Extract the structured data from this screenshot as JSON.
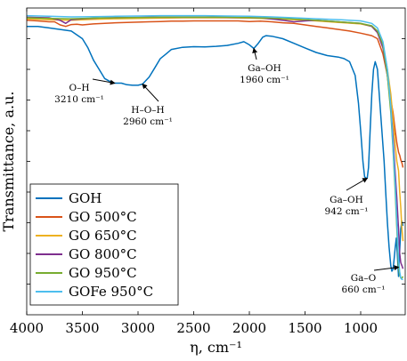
{
  "chart_data": {
    "type": "line",
    "xlabel": "η, cm⁻¹",
    "ylabel": "Transmittance, a.u.",
    "xlim": [
      4000,
      600
    ],
    "x_reversed": true,
    "xticks": [
      "4000",
      "3500",
      "3000",
      "2500",
      "2000",
      "1500",
      "1000"
    ],
    "xtick_values": [
      4000,
      3500,
      3000,
      2500,
      2000,
      1500,
      1000
    ],
    "ylim": [
      0,
      100
    ],
    "y_tick_labels_shown": false,
    "grid": false,
    "legend_position": "bottom-left",
    "series": [
      {
        "name": "GOH",
        "color": "#0072BD",
        "points": [
          [
            4000,
            94
          ],
          [
            3900,
            94
          ],
          [
            3800,
            93.5
          ],
          [
            3700,
            93
          ],
          [
            3600,
            92.5
          ],
          [
            3500,
            90
          ],
          [
            3450,
            87
          ],
          [
            3400,
            83
          ],
          [
            3350,
            80
          ],
          [
            3300,
            77
          ],
          [
            3250,
            76
          ],
          [
            3210,
            75.5
          ],
          [
            3150,
            75.5
          ],
          [
            3100,
            75
          ],
          [
            3050,
            74.8
          ],
          [
            3000,
            74.8
          ],
          [
            2960,
            75.2
          ],
          [
            2900,
            77.5
          ],
          [
            2850,
            80.5
          ],
          [
            2800,
            83.5
          ],
          [
            2750,
            85
          ],
          [
            2700,
            86.5
          ],
          [
            2600,
            87.2
          ],
          [
            2500,
            87.4
          ],
          [
            2400,
            87.3
          ],
          [
            2300,
            87.5
          ],
          [
            2200,
            87.8
          ],
          [
            2100,
            88.5
          ],
          [
            2050,
            89
          ],
          [
            2000,
            88
          ],
          [
            1960,
            86.8
          ],
          [
            1920,
            88.5
          ],
          [
            1880,
            90.5
          ],
          [
            1850,
            91
          ],
          [
            1800,
            90.8
          ],
          [
            1700,
            90
          ],
          [
            1600,
            88.5
          ],
          [
            1500,
            87
          ],
          [
            1400,
            85.5
          ],
          [
            1300,
            84.5
          ],
          [
            1200,
            84
          ],
          [
            1150,
            83.5
          ],
          [
            1100,
            82.5
          ],
          [
            1050,
            78
          ],
          [
            1020,
            69
          ],
          [
            1000,
            60
          ],
          [
            980,
            50
          ],
          [
            965,
            45
          ],
          [
            950,
            44.5
          ],
          [
            942,
            44.5
          ],
          [
            930,
            48
          ],
          [
            915,
            60
          ],
          [
            900,
            72
          ],
          [
            885,
            80
          ],
          [
            870,
            82.5
          ],
          [
            850,
            80
          ],
          [
            830,
            70
          ],
          [
            810,
            60
          ],
          [
            790,
            50
          ],
          [
            775,
            40
          ],
          [
            760,
            30
          ],
          [
            745,
            22
          ],
          [
            730,
            16
          ],
          [
            720,
            14.2
          ],
          [
            710,
            14.8
          ],
          [
            700,
            18
          ],
          [
            690,
            22
          ],
          [
            680,
            25
          ],
          [
            670,
            19
          ],
          [
            660,
            12.5
          ],
          [
            650,
            21
          ],
          [
            640,
            28
          ],
          [
            630,
            30.5
          ],
          [
            620,
            29
          ]
        ]
      },
      {
        "name": "GO 500°C",
        "color": "#D95319",
        "points": [
          [
            4000,
            96
          ],
          [
            3900,
            95.8
          ],
          [
            3800,
            95.5
          ],
          [
            3750,
            95.5
          ],
          [
            3700,
            94.5
          ],
          [
            3650,
            94
          ],
          [
            3600,
            94.6
          ],
          [
            3550,
            94.7
          ],
          [
            3500,
            94.5
          ],
          [
            3400,
            94.8
          ],
          [
            3300,
            95
          ],
          [
            3200,
            95.2
          ],
          [
            3100,
            95.3
          ],
          [
            3000,
            95.4
          ],
          [
            2900,
            95.5
          ],
          [
            2800,
            95.6
          ],
          [
            2700,
            95.7
          ],
          [
            2600,
            95.7
          ],
          [
            2500,
            95.8
          ],
          [
            2400,
            95.8
          ],
          [
            2300,
            95.8
          ],
          [
            2200,
            95.8
          ],
          [
            2100,
            95.8
          ],
          [
            2000,
            95.6
          ],
          [
            1900,
            95.7
          ],
          [
            1800,
            95.5
          ],
          [
            1700,
            95.2
          ],
          [
            1600,
            95
          ],
          [
            1500,
            94.5
          ],
          [
            1400,
            94
          ],
          [
            1300,
            93.5
          ],
          [
            1200,
            93
          ],
          [
            1100,
            92.5
          ],
          [
            1000,
            91.8
          ],
          [
            900,
            91
          ],
          [
            850,
            90
          ],
          [
            800,
            85
          ],
          [
            760,
            78
          ],
          [
            730,
            70
          ],
          [
            710,
            66
          ],
          [
            690,
            60
          ],
          [
            675,
            56
          ],
          [
            660,
            53
          ],
          [
            650,
            52
          ],
          [
            640,
            50.5
          ],
          [
            630,
            49.5
          ],
          [
            620,
            48
          ]
        ]
      },
      {
        "name": "GO 650°C",
        "color": "#EDB120",
        "points": [
          [
            4000,
            96.5
          ],
          [
            3800,
            96.2
          ],
          [
            3600,
            96
          ],
          [
            3400,
            96.3
          ],
          [
            3200,
            96.5
          ],
          [
            3000,
            96.6
          ],
          [
            2800,
            96.7
          ],
          [
            2600,
            96.8
          ],
          [
            2400,
            96.8
          ],
          [
            2200,
            96.8
          ],
          [
            2000,
            96.7
          ],
          [
            1800,
            96.5
          ],
          [
            1600,
            96.2
          ],
          [
            1400,
            95.8
          ],
          [
            1200,
            95.3
          ],
          [
            1000,
            94.8
          ],
          [
            900,
            94
          ],
          [
            850,
            92
          ],
          [
            800,
            88
          ],
          [
            760,
            80
          ],
          [
            730,
            72
          ],
          [
            710,
            64
          ],
          [
            690,
            55
          ],
          [
            675,
            50
          ],
          [
            660,
            47
          ],
          [
            650,
            40
          ],
          [
            640,
            35
          ],
          [
            630,
            28
          ],
          [
            620,
            24
          ]
        ]
      },
      {
        "name": "GO 800°C",
        "color": "#7E2F8E",
        "points": [
          [
            4000,
            97
          ],
          [
            3800,
            96.8
          ],
          [
            3700,
            96
          ],
          [
            3650,
            95
          ],
          [
            3600,
            96.2
          ],
          [
            3500,
            96.5
          ],
          [
            3300,
            96.8
          ],
          [
            3100,
            96.9
          ],
          [
            2900,
            97
          ],
          [
            2700,
            97
          ],
          [
            2500,
            97
          ],
          [
            2300,
            97
          ],
          [
            2100,
            96.9
          ],
          [
            1900,
            96.8
          ],
          [
            1700,
            96
          ],
          [
            1600,
            95.5
          ],
          [
            1500,
            95.8
          ],
          [
            1400,
            96
          ],
          [
            1200,
            95.5
          ],
          [
            1000,
            95
          ],
          [
            900,
            94
          ],
          [
            850,
            92
          ],
          [
            800,
            87
          ],
          [
            760,
            78
          ],
          [
            730,
            68
          ],
          [
            710,
            58
          ],
          [
            690,
            46
          ],
          [
            675,
            38
          ],
          [
            660,
            28
          ],
          [
            650,
            20
          ],
          [
            640,
            17
          ],
          [
            630,
            16
          ],
          [
            620,
            15
          ]
        ]
      },
      {
        "name": "GO 950°C",
        "color": "#77AC30",
        "points": [
          [
            4000,
            96.8
          ],
          [
            3800,
            96.6
          ],
          [
            3600,
            96.5
          ],
          [
            3400,
            96.7
          ],
          [
            3200,
            96.8
          ],
          [
            3000,
            96.9
          ],
          [
            2800,
            97
          ],
          [
            2600,
            97
          ],
          [
            2400,
            97
          ],
          [
            2200,
            97
          ],
          [
            2000,
            96.9
          ],
          [
            1800,
            96.7
          ],
          [
            1600,
            96.4
          ],
          [
            1400,
            96
          ],
          [
            1200,
            95.5
          ],
          [
            1000,
            95
          ],
          [
            900,
            94.2
          ],
          [
            850,
            92.5
          ],
          [
            800,
            88
          ],
          [
            760,
            78
          ],
          [
            730,
            66
          ],
          [
            710,
            54
          ],
          [
            690,
            40
          ],
          [
            675,
            28
          ],
          [
            660,
            15.5
          ],
          [
            650,
            13
          ],
          [
            640,
            12
          ],
          [
            630,
            12
          ],
          [
            620,
            12.5
          ]
        ]
      },
      {
        "name": "GOFe 950°C",
        "color": "#4DBEEE",
        "points": [
          [
            4000,
            97.5
          ],
          [
            3800,
            97.3
          ],
          [
            3600,
            97.1
          ],
          [
            3400,
            97.2
          ],
          [
            3200,
            97.3
          ],
          [
            3000,
            97.4
          ],
          [
            2800,
            97.5
          ],
          [
            2600,
            97.5
          ],
          [
            2400,
            97.5
          ],
          [
            2200,
            97.4
          ],
          [
            2000,
            97.3
          ],
          [
            1800,
            97.1
          ],
          [
            1600,
            96.8
          ],
          [
            1400,
            96.5
          ],
          [
            1200,
            96.2
          ],
          [
            1000,
            95.8
          ],
          [
            900,
            95
          ],
          [
            850,
            93.5
          ],
          [
            800,
            89
          ],
          [
            760,
            80
          ],
          [
            730,
            68
          ],
          [
            710,
            55
          ],
          [
            690,
            42
          ],
          [
            675,
            30
          ],
          [
            660,
            18
          ],
          [
            650,
            14
          ],
          [
            640,
            12
          ],
          [
            630,
            11.5
          ],
          [
            620,
            11.5
          ]
        ]
      }
    ],
    "annotations": [
      {
        "id": "oh",
        "label": "O–H",
        "wavenumber": "3210 cm⁻¹"
      },
      {
        "id": "hoh",
        "label": "H–O–H",
        "wavenumber": "2960 cm⁻¹"
      },
      {
        "id": "gaoh1960",
        "label": "Ga–OH",
        "wavenumber": "1960 cm⁻¹"
      },
      {
        "id": "gaoh942",
        "label": "Ga–OH",
        "wavenumber": "942 cm⁻¹"
      },
      {
        "id": "gao660",
        "label": "Ga–O",
        "wavenumber": "660 cm⁻¹"
      }
    ]
  }
}
